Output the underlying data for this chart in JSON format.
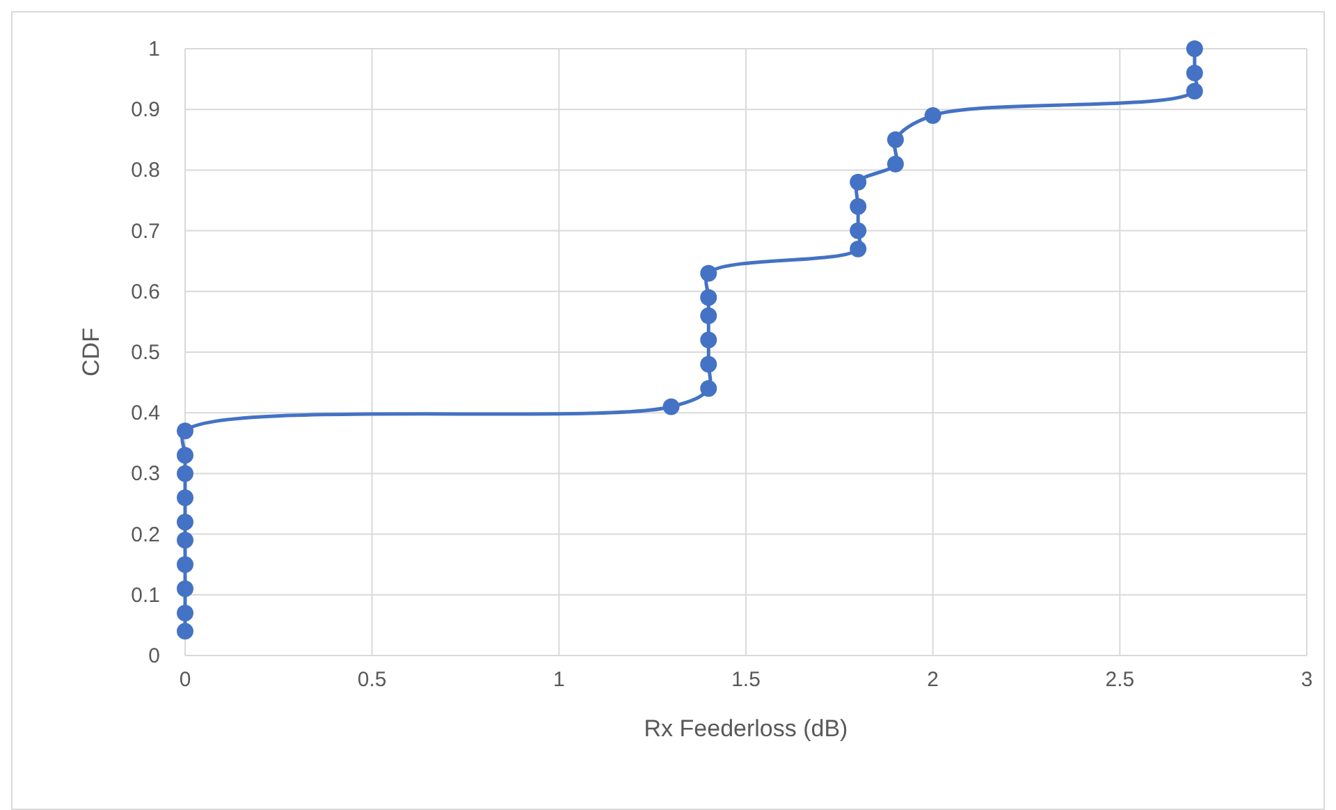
{
  "chart_data": {
    "type": "line",
    "xlabel": "Rx Feederloss (dB)",
    "ylabel": "CDF",
    "x": [
      0,
      0,
      0,
      0,
      0,
      0,
      0,
      0,
      0,
      0,
      1.3,
      1.4,
      1.4,
      1.4,
      1.4,
      1.4,
      1.4,
      1.8,
      1.8,
      1.8,
      1.8,
      1.9,
      1.9,
      2,
      2.7,
      2.7,
      2.7
    ],
    "series": [
      {
        "color": "#4472c4",
        "values": [
          0.04,
          0.07,
          0.11,
          0.15,
          0.19,
          0.22,
          0.26,
          0.3,
          0.33,
          0.37,
          0.41,
          0.44,
          0.48,
          0.52,
          0.56,
          0.59,
          0.63,
          0.67,
          0.7,
          0.74,
          0.78,
          0.81,
          0.85,
          0.89,
          0.93,
          0.96,
          1
        ]
      }
    ],
    "xlim": [
      0,
      3
    ],
    "xticks": [
      0,
      0.5,
      1,
      1.5,
      2,
      2.5,
      3
    ],
    "ylim": [
      0,
      1
    ],
    "yticks": [
      0,
      0.1,
      0.2,
      0.3,
      0.4,
      0.5,
      0.6,
      0.7,
      0.8,
      0.9,
      1
    ],
    "grid": true,
    "marker": "circle",
    "line_style": "solid"
  }
}
